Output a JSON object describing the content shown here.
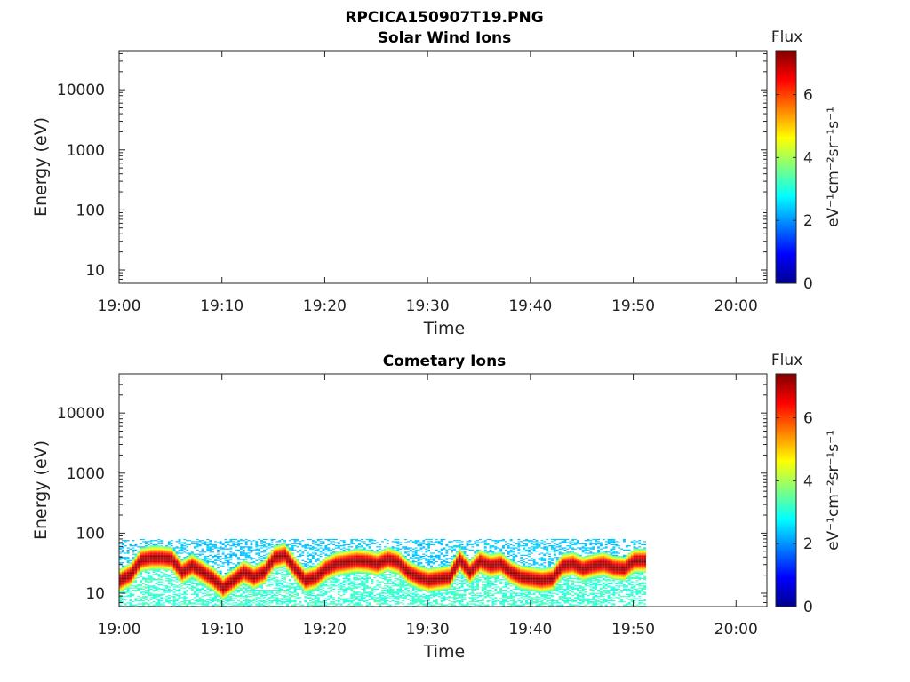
{
  "figure": {
    "title": "RPCICA150907T19.PNG"
  },
  "chart_data": [
    {
      "type": "heatmap",
      "title": "Solar Wind Ions",
      "xlabel": "Time",
      "ylabel": "Energy (eV)",
      "x_ticks": [
        "19:00",
        "19:10",
        "19:20",
        "19:30",
        "19:40",
        "19:50",
        "20:00"
      ],
      "x_range": [
        "19:00",
        "20:03"
      ],
      "y_scale": "log",
      "y_ticks": [
        10,
        100,
        1000,
        10000
      ],
      "y_tick_labels": [
        "10",
        "100",
        "1000",
        "10000"
      ],
      "y_range": [
        6,
        45000
      ],
      "colorbar": {
        "label": "Flux",
        "unit": "eV⁻¹cm⁻²sr⁻¹s⁻¹",
        "range": [
          0,
          7.4
        ],
        "ticks": [
          0,
          2,
          4,
          6
        ],
        "colormap": "jet"
      },
      "data": []
    },
    {
      "type": "heatmap",
      "title": "Cometary Ions",
      "xlabel": "Time",
      "ylabel": "Energy (eV)",
      "x_ticks": [
        "19:00",
        "19:10",
        "19:20",
        "19:30",
        "19:40",
        "19:50",
        "20:00"
      ],
      "x_range": [
        "19:00",
        "20:03"
      ],
      "y_scale": "log",
      "y_ticks": [
        10,
        100,
        1000,
        10000
      ],
      "y_tick_labels": [
        "10",
        "100",
        "1000",
        "10000"
      ],
      "y_range": [
        6,
        45000
      ],
      "colorbar": {
        "label": "Flux",
        "unit": "eV⁻¹cm⁻²sr⁻¹s⁻¹",
        "range": [
          0,
          7.4
        ],
        "ticks": [
          0,
          2,
          4,
          6
        ],
        "colormap": "jet"
      },
      "data_time_range": [
        "19:00",
        "19:51"
      ],
      "data_max_energy_eV": 80,
      "peak_energy_eV": [
        [
          "19:00",
          16
        ],
        [
          "19:01",
          20
        ],
        [
          "19:02",
          35
        ],
        [
          "19:03",
          38
        ],
        [
          "19:04",
          38
        ],
        [
          "19:05",
          36
        ],
        [
          "19:06",
          22
        ],
        [
          "19:07",
          28
        ],
        [
          "19:08",
          22
        ],
        [
          "19:09",
          17
        ],
        [
          "19:10",
          12
        ],
        [
          "19:11",
          16
        ],
        [
          "19:12",
          22
        ],
        [
          "19:13",
          18
        ],
        [
          "19:14",
          22
        ],
        [
          "19:15",
          38
        ],
        [
          "19:16",
          42
        ],
        [
          "19:17",
          25
        ],
        [
          "19:18",
          16
        ],
        [
          "19:19",
          18
        ],
        [
          "19:20",
          25
        ],
        [
          "19:21",
          30
        ],
        [
          "19:22",
          32
        ],
        [
          "19:23",
          34
        ],
        [
          "19:24",
          33
        ],
        [
          "19:25",
          30
        ],
        [
          "19:26",
          36
        ],
        [
          "19:27",
          32
        ],
        [
          "19:28",
          22
        ],
        [
          "19:29",
          18
        ],
        [
          "19:30",
          16
        ],
        [
          "19:31",
          17
        ],
        [
          "19:32",
          18
        ],
        [
          "19:33",
          35
        ],
        [
          "19:34",
          22
        ],
        [
          "19:35",
          33
        ],
        [
          "19:36",
          28
        ],
        [
          "19:37",
          30
        ],
        [
          "19:38",
          22
        ],
        [
          "19:39",
          18
        ],
        [
          "19:40",
          17
        ],
        [
          "19:41",
          16
        ],
        [
          "19:42",
          17
        ],
        [
          "19:43",
          28
        ],
        [
          "19:44",
          30
        ],
        [
          "19:45",
          25
        ],
        [
          "19:46",
          28
        ],
        [
          "19:47",
          30
        ],
        [
          "19:48",
          26
        ],
        [
          "19:49",
          25
        ],
        [
          "19:50",
          34
        ],
        [
          "19:51",
          34
        ]
      ]
    }
  ]
}
